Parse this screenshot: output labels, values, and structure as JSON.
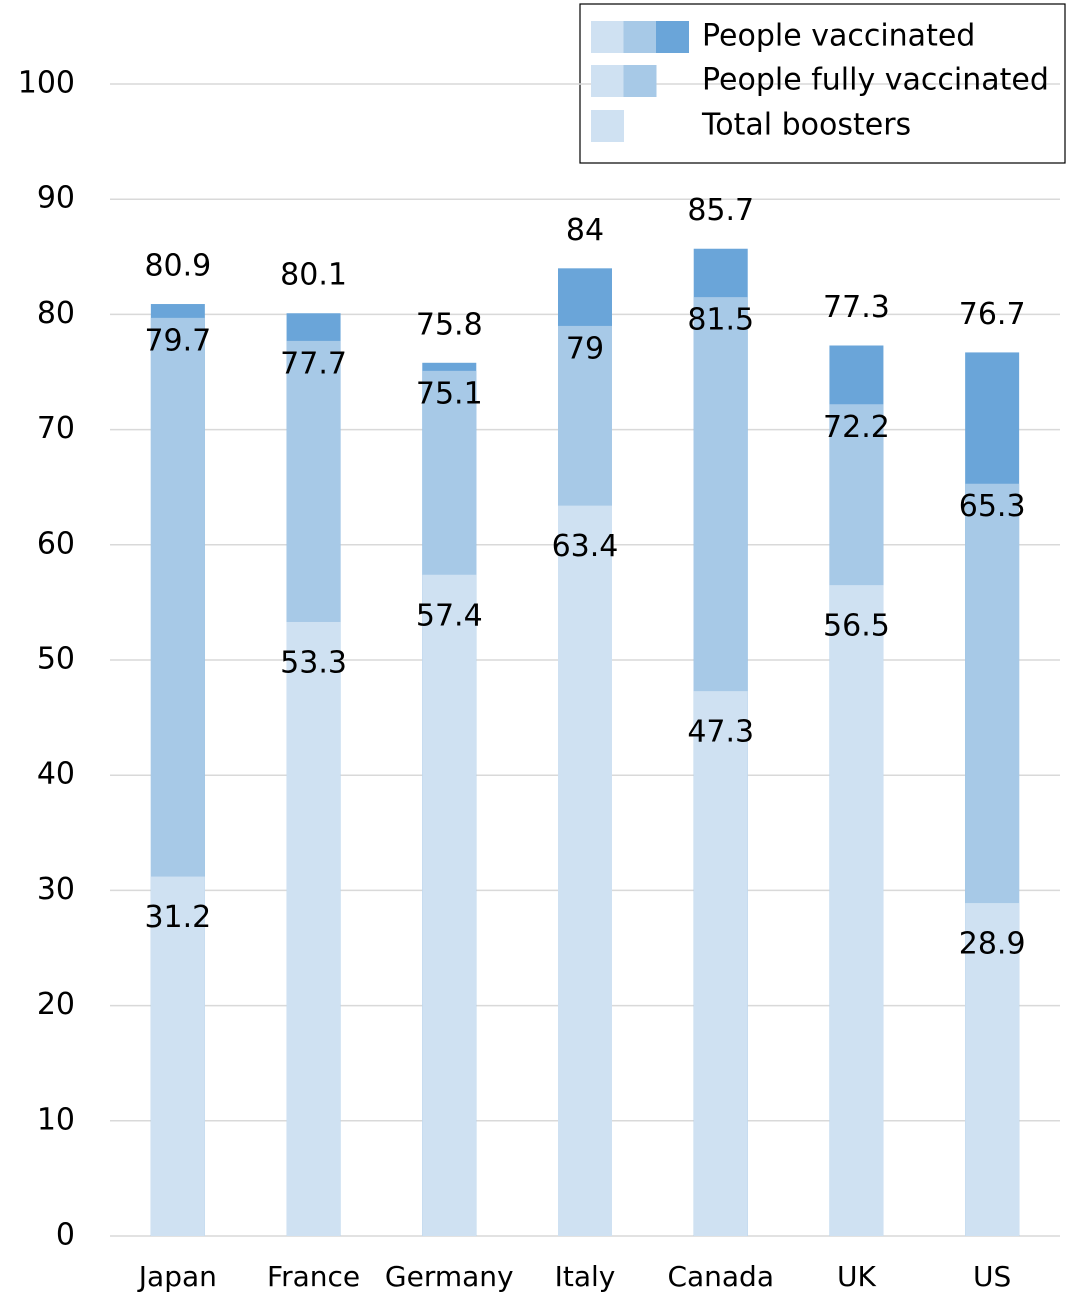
{
  "chart_data": {
    "type": "bar",
    "categories": [
      "Japan",
      "France",
      "Germany",
      "Italy",
      "Canada",
      "UK",
      "US"
    ],
    "series": [
      {
        "name": "People vaccinated",
        "color": "#6aa5d9",
        "values": [
          80.9,
          80.1,
          75.8,
          84,
          85.7,
          77.3,
          76.7
        ]
      },
      {
        "name": "People fully vaccinated",
        "color": "#a7c9e7",
        "values": [
          79.7,
          77.7,
          75.1,
          79,
          81.5,
          72.2,
          65.3
        ]
      },
      {
        "name": "Total boosters",
        "color": "#cfe1f2",
        "values": [
          31.2,
          53.3,
          57.4,
          63.4,
          47.3,
          56.5,
          28.9
        ]
      }
    ],
    "ylim": [
      0,
      100
    ],
    "yticks": [
      0,
      10,
      20,
      30,
      40,
      50,
      60,
      70,
      80,
      90,
      100
    ],
    "grid": true
  }
}
